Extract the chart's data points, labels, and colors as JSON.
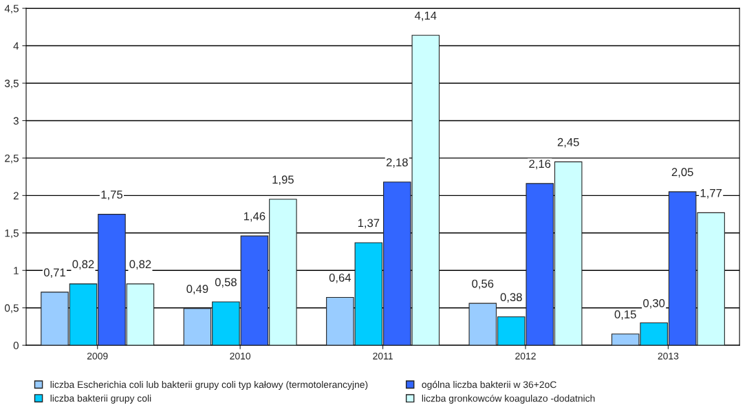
{
  "chart_data": {
    "type": "bar",
    "categories": [
      "2009",
      "2010",
      "2011",
      "2012",
      "2013"
    ],
    "series": [
      {
        "name": "liczba Escherichia coli lub bakterii grupy coli typ kałowy (termotolerancyjne)",
        "color": "#99ccff",
        "values": [
          0.71,
          0.49,
          0.64,
          0.56,
          0.15
        ],
        "value_labels": [
          "0,71",
          "0,49",
          "0,64",
          "0,56",
          "0,15"
        ]
      },
      {
        "name": "liczba bakterii grupy coli",
        "color": "#00ccff",
        "values": [
          0.82,
          0.58,
          1.37,
          0.38,
          0.3
        ],
        "value_labels": [
          "0,82",
          "0,58",
          "1,37",
          "0,38",
          "0,30"
        ]
      },
      {
        "name": "ogólna liczba bakterii w 36+2oC",
        "color": "#3366ff",
        "values": [
          1.75,
          1.46,
          2.18,
          2.16,
          2.05
        ],
        "value_labels": [
          "1,75",
          "1,46",
          "2,18",
          "2,16",
          "2,05"
        ]
      },
      {
        "name": "liczba gronkowców koagulazo -dodatnich",
        "color": "#ccffff",
        "values": [
          0.82,
          1.95,
          4.14,
          2.45,
          1.77
        ],
        "value_labels": [
          "0,82",
          "1,95",
          "4,14",
          "2,45",
          "1,77"
        ]
      }
    ],
    "ylim": [
      0,
      4.5
    ],
    "yticks": [
      0,
      {
        "value": 0.5,
        "label": "0,5"
      },
      1,
      {
        "value": 1.5,
        "label": "1,5"
      },
      2,
      {
        "value": 2.5,
        "label": "2,5"
      },
      3,
      {
        "value": 3.5,
        "label": "3,5"
      },
      4,
      {
        "value": 4.5,
        "label": "4,5"
      }
    ],
    "grid": "y",
    "legend": "bottom"
  }
}
